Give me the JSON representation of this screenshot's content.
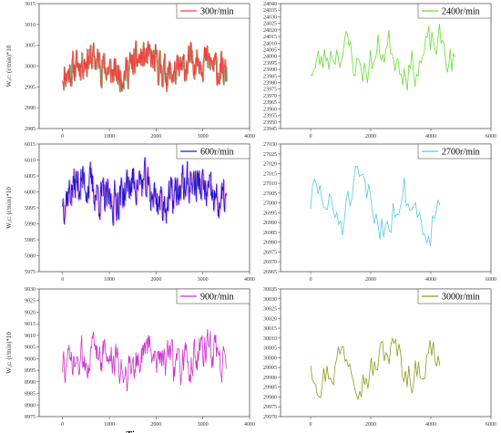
{
  "figure": {
    "xlabel": "Time: ms",
    "ylabel": "Wₐc: (r/min)*10"
  },
  "chart_data": [
    {
      "type": "line",
      "panel": "left-1",
      "series": [
        {
          "name": "300r/min",
          "color": "#ff3b3b",
          "shadow": "#3a6b1e",
          "x_start": 0,
          "x_end": 3500,
          "n": 520,
          "base": 3000,
          "amp": 4.2,
          "seed": 11
        }
      ],
      "xlim": [
        -500,
        4000
      ],
      "ylim": [
        2985,
        3015
      ],
      "xticks": [
        0,
        1000,
        2000,
        3000,
        4000
      ],
      "yticks": [
        2985,
        2990,
        2995,
        3000,
        3005,
        3010,
        3015
      ],
      "show_ylabel": true,
      "show_xlabel": false
    },
    {
      "type": "line",
      "panel": "right-1",
      "series": [
        {
          "name": "2400r/min",
          "color": "#66dd33",
          "x_start": 0,
          "x_end": 4800,
          "n": 95,
          "base": 24000,
          "amp": 18,
          "seed": 23
        }
      ],
      "xlim": [
        -1000,
        6000
      ],
      "ylim": [
        23945,
        24040
      ],
      "xticks": [
        0,
        2000,
        4000,
        6000
      ],
      "yticks": [
        23945,
        23950,
        23955,
        23960,
        23965,
        23970,
        23975,
        23980,
        23985,
        23990,
        23995,
        24000,
        24005,
        24010,
        24015,
        24020,
        24025,
        24030,
        24035,
        24040
      ],
      "show_ylabel": false,
      "show_xlabel": false
    },
    {
      "type": "line",
      "panel": "left-2",
      "series": [
        {
          "name": "600r/min",
          "color": "#1a1acc",
          "shadow": "#e64cc8",
          "x_start": 0,
          "x_end": 3500,
          "n": 420,
          "base": 6000,
          "amp": 7,
          "seed": 37
        }
      ],
      "xlim": [
        -500,
        4000
      ],
      "ylim": [
        5975,
        6015
      ],
      "xticks": [
        0,
        1000,
        2000,
        3000,
        4000
      ],
      "yticks": [
        5975,
        5980,
        5985,
        5990,
        5995,
        6000,
        6005,
        6010,
        6015
      ],
      "show_ylabel": true,
      "show_xlabel": false
    },
    {
      "type": "line",
      "panel": "right-2",
      "series": [
        {
          "name": "2700r/min",
          "color": "#55c8e6",
          "x_start": 0,
          "x_end": 4300,
          "n": 70,
          "base": 26998,
          "amp": 14,
          "seed": 51
        }
      ],
      "xlim": [
        -1000,
        6000
      ],
      "ylim": [
        26965,
        27030
      ],
      "xticks": [
        0,
        2000,
        4000,
        6000
      ],
      "yticks": [
        26965,
        26970,
        26975,
        26980,
        26985,
        26990,
        26995,
        27000,
        27005,
        27010,
        27015,
        27020,
        27025,
        27030
      ],
      "show_ylabel": false,
      "show_xlabel": false
    },
    {
      "type": "line",
      "panel": "left-3",
      "series": [
        {
          "name": "900r/min",
          "color": "#cc33cc",
          "x_start": 0,
          "x_end": 3500,
          "n": 300,
          "base": 9000,
          "amp": 9,
          "seed": 73
        }
      ],
      "xlim": [
        -500,
        4000
      ],
      "ylim": [
        8975,
        9030
      ],
      "xticks": [
        0,
        1000,
        2000,
        3000,
        4000
      ],
      "yticks": [
        8975,
        8980,
        8985,
        8990,
        8995,
        9000,
        9005,
        9010,
        9015,
        9020,
        9025,
        9030
      ],
      "show_ylabel": true,
      "show_xlabel": true
    },
    {
      "type": "line",
      "panel": "right-3",
      "series": [
        {
          "name": "3000r/min",
          "color": "#8a9a1a",
          "x_start": 0,
          "x_end": 4300,
          "n": 80,
          "base": 29998,
          "amp": 12,
          "seed": 97
        }
      ],
      "xlim": [
        -1000,
        6000
      ],
      "ylim": [
        29970,
        30035
      ],
      "xticks": [
        0,
        2000,
        4000,
        6000
      ],
      "yticks": [
        29970,
        29975,
        29980,
        29985,
        29990,
        29995,
        30000,
        30005,
        30010,
        30015,
        30020,
        30025,
        30030,
        30035
      ],
      "show_ylabel": false,
      "show_xlabel": false
    }
  ]
}
